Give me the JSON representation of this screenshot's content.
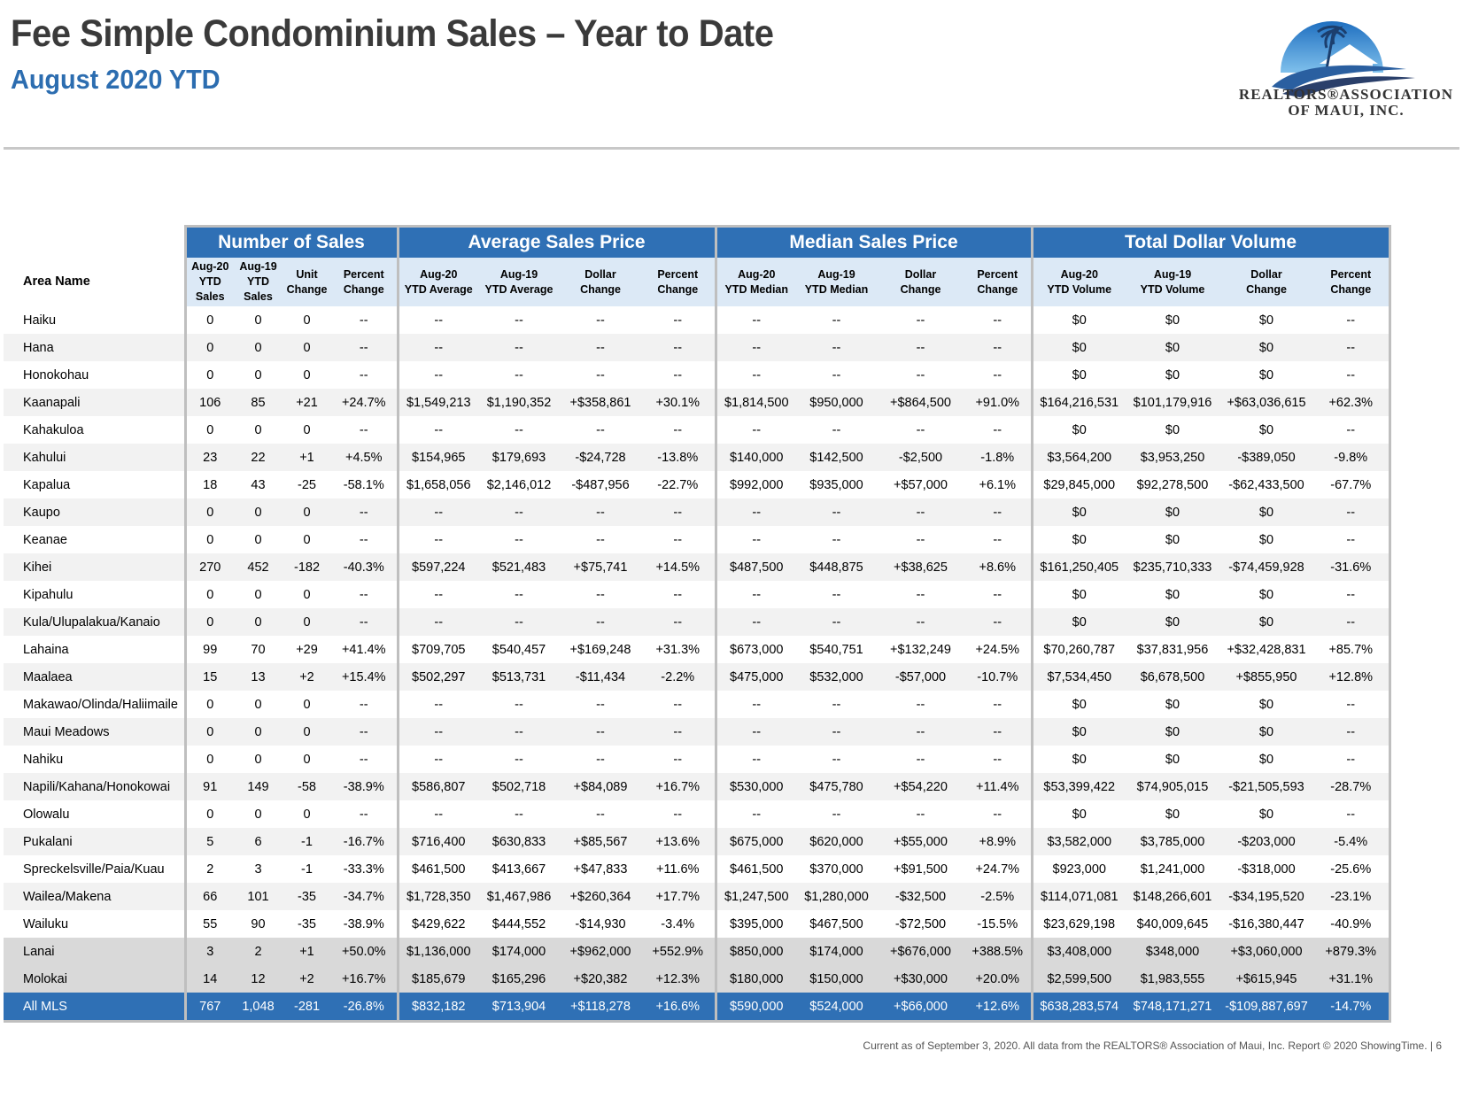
{
  "header": {
    "title": "Fee Simple Condominium Sales – Year to Date",
    "subtitle": "August 2020 YTD"
  },
  "logo": {
    "line1": "REALTORS®ASSOCIATION",
    "line2": "OF MAUI, INC.",
    "colors": {
      "sky": "#3a8fd0",
      "wave": "#2a5fa0",
      "dark": "#333333"
    }
  },
  "table": {
    "groups": [
      "Number of Sales",
      "Average Sales Price",
      "Median Sales Price",
      "Total Dollar Volume"
    ],
    "area_header": "Area Name",
    "columns": [
      [
        "Aug-20",
        "YTD",
        "Sales"
      ],
      [
        "Aug-19",
        "YTD",
        "Sales"
      ],
      [
        "Unit",
        "Change"
      ],
      [
        "Percent",
        "Change"
      ],
      [
        "Aug-20",
        "YTD Average"
      ],
      [
        "Aug-19",
        "YTD Average"
      ],
      [
        "Dollar",
        "Change"
      ],
      [
        "Percent",
        "Change"
      ],
      [
        "Aug-20",
        "YTD Median"
      ],
      [
        "Aug-19",
        "YTD Median"
      ],
      [
        "Dollar",
        "Change"
      ],
      [
        "Percent",
        "Change"
      ],
      [
        "Aug-20",
        "YTD Volume"
      ],
      [
        "Aug-19",
        "YTD Volume"
      ],
      [
        "Dollar",
        "Change"
      ],
      [
        "Percent",
        "Change"
      ]
    ],
    "rows": [
      {
        "area": "Haiku",
        "v": [
          "0",
          "0",
          "0",
          "--",
          "--",
          "--",
          "--",
          "--",
          "--",
          "--",
          "--",
          "--",
          "$0",
          "$0",
          "$0",
          "--"
        ]
      },
      {
        "area": "Hana",
        "v": [
          "0",
          "0",
          "0",
          "--",
          "--",
          "--",
          "--",
          "--",
          "--",
          "--",
          "--",
          "--",
          "$0",
          "$0",
          "$0",
          "--"
        ]
      },
      {
        "area": "Honokohau",
        "v": [
          "0",
          "0",
          "0",
          "--",
          "--",
          "--",
          "--",
          "--",
          "--",
          "--",
          "--",
          "--",
          "$0",
          "$0",
          "$0",
          "--"
        ]
      },
      {
        "area": "Kaanapali",
        "v": [
          "106",
          "85",
          "+21",
          "+24.7%",
          "$1,549,213",
          "$1,190,352",
          "+$358,861",
          "+30.1%",
          "$1,814,500",
          "$950,000",
          "+$864,500",
          "+91.0%",
          "$164,216,531",
          "$101,179,916",
          "+$63,036,615",
          "+62.3%"
        ]
      },
      {
        "area": "Kahakuloa",
        "v": [
          "0",
          "0",
          "0",
          "--",
          "--",
          "--",
          "--",
          "--",
          "--",
          "--",
          "--",
          "--",
          "$0",
          "$0",
          "$0",
          "--"
        ]
      },
      {
        "area": "Kahului",
        "v": [
          "23",
          "22",
          "+1",
          "+4.5%",
          "$154,965",
          "$179,693",
          "-$24,728",
          "-13.8%",
          "$140,000",
          "$142,500",
          "-$2,500",
          "-1.8%",
          "$3,564,200",
          "$3,953,250",
          "-$389,050",
          "-9.8%"
        ]
      },
      {
        "area": "Kapalua",
        "v": [
          "18",
          "43",
          "-25",
          "-58.1%",
          "$1,658,056",
          "$2,146,012",
          "-$487,956",
          "-22.7%",
          "$992,000",
          "$935,000",
          "+$57,000",
          "+6.1%",
          "$29,845,000",
          "$92,278,500",
          "-$62,433,500",
          "-67.7%"
        ]
      },
      {
        "area": "Kaupo",
        "v": [
          "0",
          "0",
          "0",
          "--",
          "--",
          "--",
          "--",
          "--",
          "--",
          "--",
          "--",
          "--",
          "$0",
          "$0",
          "$0",
          "--"
        ]
      },
      {
        "area": "Keanae",
        "v": [
          "0",
          "0",
          "0",
          "--",
          "--",
          "--",
          "--",
          "--",
          "--",
          "--",
          "--",
          "--",
          "$0",
          "$0",
          "$0",
          "--"
        ]
      },
      {
        "area": "Kihei",
        "v": [
          "270",
          "452",
          "-182",
          "-40.3%",
          "$597,224",
          "$521,483",
          "+$75,741",
          "+14.5%",
          "$487,500",
          "$448,875",
          "+$38,625",
          "+8.6%",
          "$161,250,405",
          "$235,710,333",
          "-$74,459,928",
          "-31.6%"
        ]
      },
      {
        "area": "Kipahulu",
        "v": [
          "0",
          "0",
          "0",
          "--",
          "--",
          "--",
          "--",
          "--",
          "--",
          "--",
          "--",
          "--",
          "$0",
          "$0",
          "$0",
          "--"
        ]
      },
      {
        "area": "Kula/Ulupalakua/Kanaio",
        "v": [
          "0",
          "0",
          "0",
          "--",
          "--",
          "--",
          "--",
          "--",
          "--",
          "--",
          "--",
          "--",
          "$0",
          "$0",
          "$0",
          "--"
        ]
      },
      {
        "area": "Lahaina",
        "v": [
          "99",
          "70",
          "+29",
          "+41.4%",
          "$709,705",
          "$540,457",
          "+$169,248",
          "+31.3%",
          "$673,000",
          "$540,751",
          "+$132,249",
          "+24.5%",
          "$70,260,787",
          "$37,831,956",
          "+$32,428,831",
          "+85.7%"
        ]
      },
      {
        "area": "Maalaea",
        "v": [
          "15",
          "13",
          "+2",
          "+15.4%",
          "$502,297",
          "$513,731",
          "-$11,434",
          "-2.2%",
          "$475,000",
          "$532,000",
          "-$57,000",
          "-10.7%",
          "$7,534,450",
          "$6,678,500",
          "+$855,950",
          "+12.8%"
        ]
      },
      {
        "area": "Makawao/Olinda/Haliimaile",
        "v": [
          "0",
          "0",
          "0",
          "--",
          "--",
          "--",
          "--",
          "--",
          "--",
          "--",
          "--",
          "--",
          "$0",
          "$0",
          "$0",
          "--"
        ]
      },
      {
        "area": "Maui Meadows",
        "v": [
          "0",
          "0",
          "0",
          "--",
          "--",
          "--",
          "--",
          "--",
          "--",
          "--",
          "--",
          "--",
          "$0",
          "$0",
          "$0",
          "--"
        ]
      },
      {
        "area": "Nahiku",
        "v": [
          "0",
          "0",
          "0",
          "--",
          "--",
          "--",
          "--",
          "--",
          "--",
          "--",
          "--",
          "--",
          "$0",
          "$0",
          "$0",
          "--"
        ]
      },
      {
        "area": "Napili/Kahana/Honokowai",
        "v": [
          "91",
          "149",
          "-58",
          "-38.9%",
          "$586,807",
          "$502,718",
          "+$84,089",
          "+16.7%",
          "$530,000",
          "$475,780",
          "+$54,220",
          "+11.4%",
          "$53,399,422",
          "$74,905,015",
          "-$21,505,593",
          "-28.7%"
        ]
      },
      {
        "area": "Olowalu",
        "v": [
          "0",
          "0",
          "0",
          "--",
          "--",
          "--",
          "--",
          "--",
          "--",
          "--",
          "--",
          "--",
          "$0",
          "$0",
          "$0",
          "--"
        ]
      },
      {
        "area": "Pukalani",
        "v": [
          "5",
          "6",
          "-1",
          "-16.7%",
          "$716,400",
          "$630,833",
          "+$85,567",
          "+13.6%",
          "$675,000",
          "$620,000",
          "+$55,000",
          "+8.9%",
          "$3,582,000",
          "$3,785,000",
          "-$203,000",
          "-5.4%"
        ]
      },
      {
        "area": "Spreckelsville/Paia/Kuau",
        "v": [
          "2",
          "3",
          "-1",
          "-33.3%",
          "$461,500",
          "$413,667",
          "+$47,833",
          "+11.6%",
          "$461,500",
          "$370,000",
          "+$91,500",
          "+24.7%",
          "$923,000",
          "$1,241,000",
          "-$318,000",
          "-25.6%"
        ]
      },
      {
        "area": "Wailea/Makena",
        "v": [
          "66",
          "101",
          "-35",
          "-34.7%",
          "$1,728,350",
          "$1,467,986",
          "+$260,364",
          "+17.7%",
          "$1,247,500",
          "$1,280,000",
          "-$32,500",
          "-2.5%",
          "$114,071,081",
          "$148,266,601",
          "-$34,195,520",
          "-23.1%"
        ]
      },
      {
        "area": "Wailuku",
        "v": [
          "55",
          "90",
          "-35",
          "-38.9%",
          "$429,622",
          "$444,552",
          "-$14,930",
          "-3.4%",
          "$395,000",
          "$467,500",
          "-$72,500",
          "-15.5%",
          "$23,629,198",
          "$40,009,645",
          "-$16,380,447",
          "-40.9%"
        ]
      }
    ],
    "island_rows": [
      {
        "area": "Lanai",
        "v": [
          "3",
          "2",
          "+1",
          "+50.0%",
          "$1,136,000",
          "$174,000",
          "+$962,000",
          "+552.9%",
          "$850,000",
          "$174,000",
          "+$676,000",
          "+388.5%",
          "$3,408,000",
          "$348,000",
          "+$3,060,000",
          "+879.3%"
        ]
      },
      {
        "area": "Molokai",
        "v": [
          "14",
          "12",
          "+2",
          "+16.7%",
          "$185,679",
          "$165,296",
          "+$20,382",
          "+12.3%",
          "$180,000",
          "$150,000",
          "+$30,000",
          "+20.0%",
          "$2,599,500",
          "$1,983,555",
          "+$615,945",
          "+31.1%"
        ]
      }
    ],
    "total_row": {
      "area": "All MLS",
      "v": [
        "767",
        "1,048",
        "-281",
        "-26.8%",
        "$832,182",
        "$713,904",
        "+$118,278",
        "+16.6%",
        "$590,000",
        "$524,000",
        "+$66,000",
        "+12.6%",
        "$638,283,574",
        "$748,171,271",
        "-$109,887,697",
        "-14.7%"
      ]
    }
  },
  "footer": "Current as of September 3, 2020. All data from the REALTORS® Association of Maui, Inc. Report © 2020 ShowingTime.  |  6"
}
